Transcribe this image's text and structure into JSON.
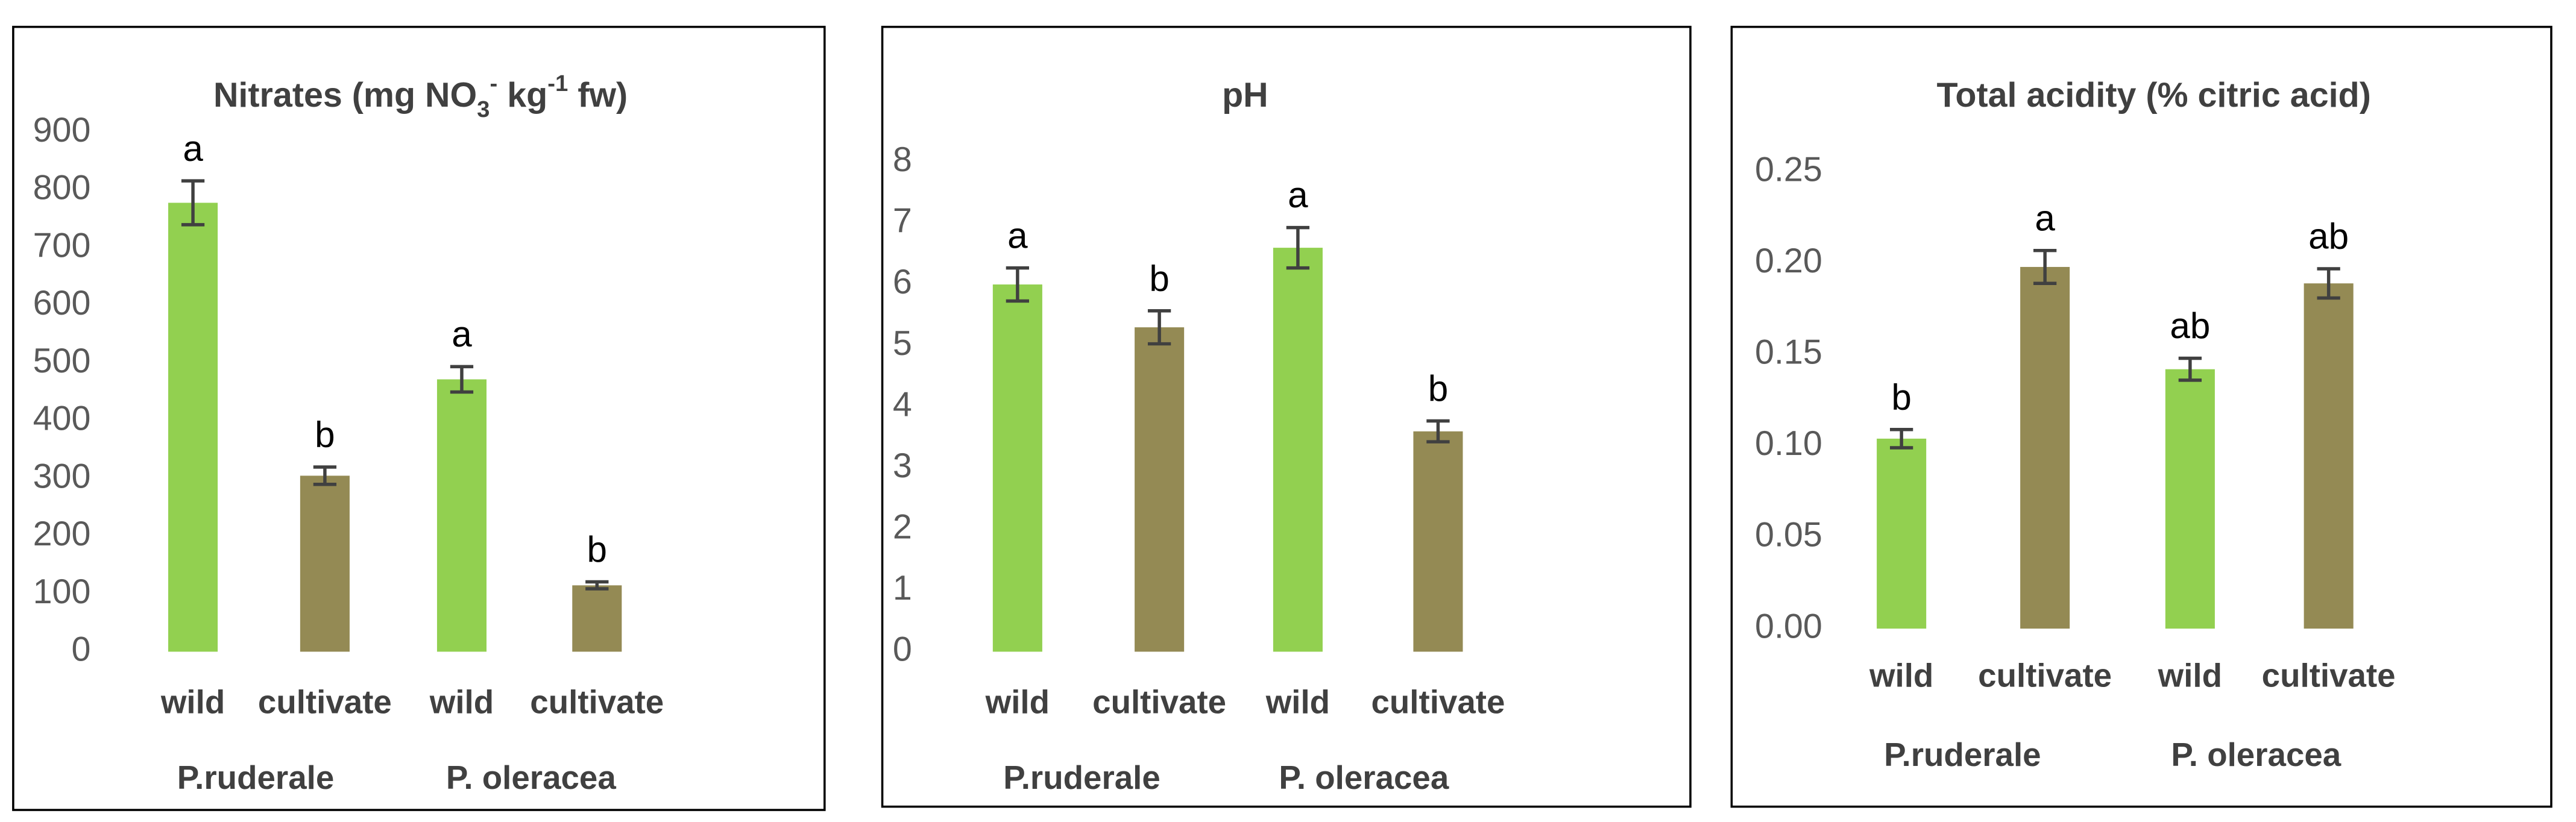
{
  "chart_data": [
    {
      "type": "bar",
      "title_parts": [
        "Nitrates (mg NO",
        "3",
        "-",
        " kg",
        "-1",
        " fw)"
      ],
      "title_format": [
        "normal",
        "sub",
        "super",
        "normal",
        "super",
        "normal"
      ],
      "categories": [
        "wild",
        "cultivate",
        "wild",
        "cultivate"
      ],
      "groups": [
        "P.ruderale",
        "P. oleracea"
      ],
      "values": [
        778,
        305,
        472,
        115
      ],
      "errors": [
        38,
        15,
        22,
        6
      ],
      "annotations": [
        "a",
        "b",
        "a",
        "b"
      ],
      "colors": [
        "#92d050",
        "#948a54",
        "#92d050",
        "#948a54"
      ],
      "ylim": [
        0,
        900
      ],
      "yticks": [
        0,
        100,
        200,
        300,
        400,
        500,
        600,
        700,
        800,
        900
      ]
    },
    {
      "type": "bar",
      "title_parts": [
        "pH"
      ],
      "title_format": [
        "normal"
      ],
      "categories": [
        "wild",
        "cultivate",
        "wild",
        "cultivate"
      ],
      "groups": [
        "P.ruderale",
        "P. oleracea"
      ],
      "values": [
        6.0,
        5.3,
        6.6,
        3.6
      ],
      "errors": [
        0.27,
        0.27,
        0.33,
        0.17
      ],
      "annotations": [
        "a",
        "b",
        "a",
        "b"
      ],
      "colors": [
        "#92d050",
        "#948a54",
        "#92d050",
        "#948a54"
      ],
      "ylim": [
        0,
        8
      ],
      "yticks": [
        0,
        1,
        2,
        3,
        4,
        5,
        6,
        7,
        8
      ]
    },
    {
      "type": "bar",
      "title_parts": [
        "Total acidity (% citric acid)"
      ],
      "title_format": [
        "normal"
      ],
      "categories": [
        "wild",
        "cultivate",
        "wild",
        "cultivate"
      ],
      "groups": [
        "P.ruderale",
        "P. oleracea"
      ],
      "values": [
        0.104,
        0.198,
        0.142,
        0.189
      ],
      "errors": [
        0.005,
        0.009,
        0.006,
        0.008
      ],
      "annotations": [
        "b",
        "a",
        "ab",
        "ab"
      ],
      "colors": [
        "#92d050",
        "#948a54",
        "#92d050",
        "#948a54"
      ],
      "ylim": [
        0,
        0.25
      ],
      "yticks": [
        {
          "value": 0,
          "label": "0.00"
        },
        {
          "value": 0.05,
          "label": "0.05"
        },
        {
          "value": 0.1,
          "label": "0.10"
        },
        {
          "value": 0.15,
          "label": "0.15"
        },
        {
          "value": 0.2,
          "label": "0.20"
        },
        {
          "value": 0.25,
          "label": "0.25"
        }
      ]
    }
  ]
}
